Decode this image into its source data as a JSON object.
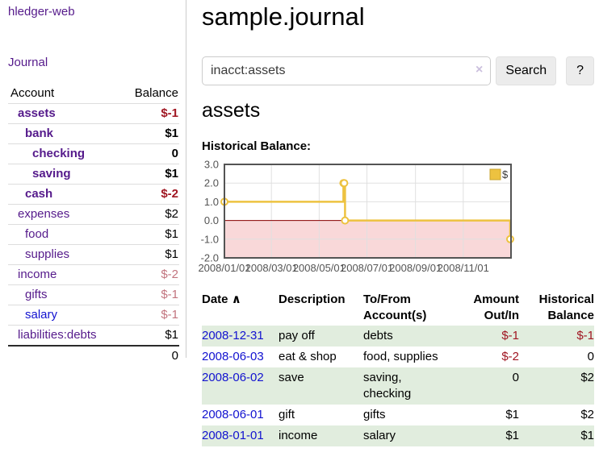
{
  "colors": {
    "visited_link": "#551a8b",
    "unvisited_link": "#1212d0",
    "negative_strong": "#a01622",
    "negative_soft": "#c2747e",
    "row_highlight": "#e1edde"
  },
  "sidebar": {
    "brand": "hledger-web",
    "nav": [
      {
        "label": "Journal"
      }
    ],
    "table": {
      "headers": {
        "account": "Account",
        "balance": "Balance"
      },
      "accounts": [
        {
          "name": "assets",
          "depth": 1,
          "selected_tree": true,
          "balance": "$-1",
          "negative": "strong",
          "link_style": "visited"
        },
        {
          "name": "bank",
          "depth": 2,
          "selected_tree": true,
          "balance": "$1",
          "negative": null,
          "link_style": "visited"
        },
        {
          "name": "checking",
          "depth": 3,
          "selected_tree": true,
          "balance": "0",
          "negative": null,
          "link_style": "visited"
        },
        {
          "name": "saving",
          "depth": 3,
          "selected_tree": true,
          "balance": "$1",
          "negative": null,
          "link_style": "visited"
        },
        {
          "name": "cash",
          "depth": 2,
          "selected_tree": true,
          "balance": "$-2",
          "negative": "strong",
          "link_style": "visited"
        },
        {
          "name": "expenses",
          "depth": 1,
          "selected_tree": false,
          "balance": "$2",
          "negative": null,
          "link_style": "visited"
        },
        {
          "name": "food",
          "depth": 2,
          "selected_tree": false,
          "balance": "$1",
          "negative": null,
          "link_style": "visited"
        },
        {
          "name": "supplies",
          "depth": 2,
          "selected_tree": false,
          "balance": "$1",
          "negative": null,
          "link_style": "visited"
        },
        {
          "name": "income",
          "depth": 1,
          "selected_tree": false,
          "balance": "$-2",
          "negative": "soft",
          "link_style": "visited"
        },
        {
          "name": "gifts",
          "depth": 2,
          "selected_tree": false,
          "balance": "$-1",
          "negative": "soft",
          "link_style": "visited"
        },
        {
          "name": "salary",
          "depth": 2,
          "selected_tree": false,
          "balance": "$-1",
          "negative": "soft",
          "link_style": "unvisited"
        },
        {
          "name": "liabilities:debts",
          "depth": 1,
          "selected_tree": false,
          "balance": "$1",
          "negative": null,
          "link_style": "visited"
        }
      ],
      "total": "0"
    }
  },
  "main": {
    "title": "sample.journal",
    "search": {
      "value": "inacct:assets",
      "clear_icon": "×",
      "search_button": "Search",
      "help_button": "?"
    },
    "account_heading": "assets",
    "chart_heading": "Historical Balance:"
  },
  "chart_data": {
    "type": "line",
    "step": true,
    "title": "Historical Balance:",
    "legend": [
      {
        "label": "$",
        "color": "#edc240"
      }
    ],
    "legend_position": "top-right",
    "x_domain": [
      "2008-01-01",
      "2009-01-01"
    ],
    "ylim": [
      -2,
      3
    ],
    "grid": true,
    "x_ticks": [
      {
        "date": "2008-01-01",
        "label": "2008/01/01"
      },
      {
        "date": "2008-03-01",
        "label": "2008/03/01"
      },
      {
        "date": "2008-05-01",
        "label": "2008/05/01"
      },
      {
        "date": "2008-07-01",
        "label": "2008/07/01"
      },
      {
        "date": "2008-09-01",
        "label": "2008/09/01"
      },
      {
        "date": "2008-11-01",
        "label": "2008/11/01"
      }
    ],
    "y_ticks": [
      {
        "value": 3,
        "label": "3.0"
      },
      {
        "value": 2,
        "label": "2.0"
      },
      {
        "value": 1,
        "label": "1.0"
      },
      {
        "value": 0,
        "label": "0.0"
      },
      {
        "value": -1,
        "label": "-1.0"
      },
      {
        "value": -2,
        "label": "-2.0"
      }
    ],
    "series": [
      {
        "name": "$",
        "color": "#edc240",
        "points": [
          {
            "date": "2008-01-01",
            "value": 1
          },
          {
            "date": "2008-06-01",
            "value": 2
          },
          {
            "date": "2008-06-02",
            "value": 2
          },
          {
            "date": "2008-06-03",
            "value": 0
          },
          {
            "date": "2008-12-31",
            "value": -1
          }
        ]
      }
    ],
    "negative_region_color": "#f9d8d9",
    "zero_line_color": "#8b0000",
    "grid_color": "#e0e0e0",
    "border_color": "#545454",
    "tick_label_color": "#545454"
  },
  "register": {
    "headers": {
      "date": "Date",
      "description": "Description",
      "accounts": "To/From\nAccount(s)",
      "amount": "Amount\nOut/In",
      "balance": "Historical\nBalance"
    },
    "sort_icon": "∧",
    "rows": [
      {
        "date": "2008-12-31",
        "description": "pay off",
        "accounts": "debts",
        "amount": "$-1",
        "amount_neg": true,
        "balance": "$-1",
        "balance_neg": true
      },
      {
        "date": "2008-06-03",
        "description": "eat & shop",
        "accounts": "food, supplies",
        "amount": "$-2",
        "amount_neg": true,
        "balance": "0",
        "balance_neg": false
      },
      {
        "date": "2008-06-02",
        "description": "save",
        "accounts": "saving,\nchecking",
        "amount": "0",
        "amount_neg": false,
        "balance": "$2",
        "balance_neg": false
      },
      {
        "date": "2008-06-01",
        "description": "gift",
        "accounts": "gifts",
        "amount": "$1",
        "amount_neg": false,
        "balance": "$2",
        "balance_neg": false
      },
      {
        "date": "2008-01-01",
        "description": "income",
        "accounts": "salary",
        "amount": "$1",
        "amount_neg": false,
        "balance": "$1",
        "balance_neg": false
      }
    ]
  }
}
